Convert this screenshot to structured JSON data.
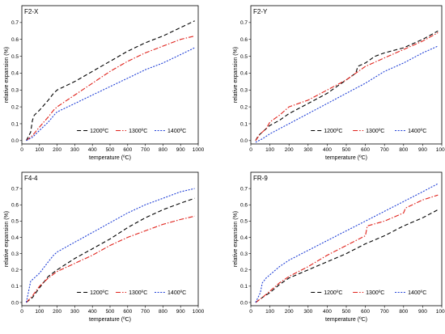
{
  "chart_data": [
    {
      "type": "line",
      "title": "F2-X",
      "xlabel": "temperature (ºC)",
      "ylabel": "relative expansion (%)",
      "xlim": [
        0,
        1000
      ],
      "ylim": [
        -0.02,
        0.8
      ],
      "xticks": [
        "0",
        "100",
        "200",
        "300",
        "400",
        "500",
        "600",
        "700",
        "800",
        "900",
        "1000"
      ],
      "yticks": [
        "0.0",
        "0.1",
        "0.2",
        "0.3",
        "0.4",
        "0.5",
        "0.6",
        "0.7"
      ],
      "legend_position": "bottom-right",
      "series": [
        {
          "name": "1200ºC",
          "color": "#000000",
          "dash": "dash",
          "x": [
            25,
            50,
            60,
            70,
            100,
            150,
            180,
            200,
            300,
            400,
            500,
            600,
            700,
            800,
            900,
            980
          ],
          "y": [
            0.0,
            0.05,
            0.12,
            0.15,
            0.18,
            0.24,
            0.28,
            0.3,
            0.35,
            0.41,
            0.47,
            0.53,
            0.58,
            0.62,
            0.67,
            0.71
          ]
        },
        {
          "name": "1300ºC",
          "color": "#e0221b",
          "dash": "dashdot",
          "x": [
            25,
            60,
            100,
            150,
            180,
            200,
            300,
            400,
            500,
            600,
            700,
            800,
            900,
            980
          ],
          "y": [
            0.0,
            0.03,
            0.08,
            0.14,
            0.18,
            0.2,
            0.27,
            0.34,
            0.41,
            0.47,
            0.52,
            0.56,
            0.6,
            0.62
          ]
        },
        {
          "name": "1400ºC",
          "color": "#1f3fd6",
          "dash": "dot",
          "x": [
            25,
            60,
            100,
            150,
            190,
            200,
            300,
            400,
            500,
            600,
            700,
            800,
            900,
            980
          ],
          "y": [
            0.0,
            0.02,
            0.06,
            0.11,
            0.16,
            0.17,
            0.22,
            0.27,
            0.32,
            0.37,
            0.42,
            0.46,
            0.51,
            0.55
          ]
        }
      ]
    },
    {
      "type": "line",
      "title": "F2-Y",
      "xlabel": "temperature (ºC)",
      "ylabel": "relative expansion (%)",
      "xlim": [
        0,
        1000
      ],
      "ylim": [
        -0.02,
        0.8
      ],
      "xticks": [
        "0",
        "100",
        "200",
        "300",
        "400",
        "500",
        "600",
        "700",
        "800",
        "900",
        "1000"
      ],
      "yticks": [
        "0.0",
        "0.1",
        "0.2",
        "0.3",
        "0.4",
        "0.5",
        "0.6",
        "0.7"
      ],
      "legend_position": "bottom-right",
      "series": [
        {
          "name": "1200ºC",
          "color": "#000000",
          "dash": "dash",
          "x": [
            25,
            40,
            60,
            80,
            100,
            150,
            200,
            300,
            400,
            500,
            550,
            560,
            600,
            650,
            700,
            800,
            900,
            980
          ],
          "y": [
            0.0,
            0.03,
            0.05,
            0.07,
            0.09,
            0.12,
            0.16,
            0.22,
            0.28,
            0.36,
            0.4,
            0.44,
            0.46,
            0.5,
            0.52,
            0.55,
            0.6,
            0.65
          ]
        },
        {
          "name": "1300ºC",
          "color": "#e0221b",
          "dash": "dashdot",
          "x": [
            25,
            50,
            80,
            100,
            150,
            200,
            300,
            400,
            500,
            600,
            700,
            800,
            900,
            980
          ],
          "y": [
            0.0,
            0.04,
            0.07,
            0.11,
            0.15,
            0.2,
            0.24,
            0.3,
            0.36,
            0.44,
            0.49,
            0.54,
            0.59,
            0.64
          ]
        },
        {
          "name": "1400ºC",
          "color": "#1f3fd6",
          "dash": "dot",
          "x": [
            25,
            60,
            100,
            150,
            200,
            300,
            400,
            500,
            600,
            700,
            800,
            900,
            980
          ],
          "y": [
            -0.01,
            0.01,
            0.04,
            0.07,
            0.1,
            0.16,
            0.22,
            0.28,
            0.34,
            0.41,
            0.46,
            0.52,
            0.56
          ]
        }
      ]
    },
    {
      "type": "line",
      "title": "F4-4",
      "xlabel": "temperature (ºC)",
      "ylabel": "relative expansion (%)",
      "xlim": [
        0,
        1000
      ],
      "ylim": [
        -0.02,
        0.8
      ],
      "xticks": [
        "0",
        "100",
        "200",
        "300",
        "400",
        "500",
        "600",
        "700",
        "800",
        "900",
        "1000"
      ],
      "yticks": [
        "0.0",
        "0.1",
        "0.2",
        "0.3",
        "0.4",
        "0.5",
        "0.6",
        "0.7"
      ],
      "legend_position": "bottom-right",
      "series": [
        {
          "name": "1200ºC",
          "color": "#000000",
          "dash": "dash",
          "x": [
            25,
            60,
            100,
            150,
            200,
            300,
            400,
            500,
            600,
            700,
            800,
            900,
            980
          ],
          "y": [
            0.0,
            0.03,
            0.09,
            0.16,
            0.2,
            0.27,
            0.33,
            0.39,
            0.46,
            0.52,
            0.57,
            0.61,
            0.64
          ]
        },
        {
          "name": "1300ºC",
          "color": "#e0221b",
          "dash": "dashdot",
          "x": [
            25,
            60,
            100,
            150,
            200,
            300,
            400,
            500,
            600,
            700,
            800,
            900,
            980
          ],
          "y": [
            0.0,
            0.04,
            0.1,
            0.15,
            0.19,
            0.24,
            0.29,
            0.35,
            0.4,
            0.44,
            0.48,
            0.51,
            0.53
          ]
        },
        {
          "name": "1400ºC",
          "color": "#1f3fd6",
          "dash": "dot",
          "x": [
            25,
            50,
            60,
            100,
            150,
            180,
            200,
            300,
            400,
            500,
            600,
            700,
            800,
            900,
            980
          ],
          "y": [
            0.0,
            0.13,
            0.14,
            0.18,
            0.25,
            0.29,
            0.31,
            0.37,
            0.43,
            0.49,
            0.55,
            0.6,
            0.64,
            0.68,
            0.7
          ]
        }
      ]
    },
    {
      "type": "line",
      "title": "FR-9",
      "xlabel": "temperature (ºC)",
      "ylabel": "relative expansion (%)",
      "xlim": [
        0,
        1000
      ],
      "ylim": [
        -0.02,
        0.8
      ],
      "xticks": [
        "0",
        "100",
        "200",
        "300",
        "400",
        "500",
        "600",
        "700",
        "800",
        "900",
        "1000"
      ],
      "yticks": [
        "0.0",
        "0.1",
        "0.2",
        "0.3",
        "0.4",
        "0.5",
        "0.6",
        "0.7"
      ],
      "legend_position": "bottom-right",
      "series": [
        {
          "name": "1200ºC",
          "color": "#000000",
          "dash": "dash",
          "x": [
            25,
            60,
            100,
            150,
            200,
            300,
            400,
            500,
            600,
            700,
            800,
            900,
            980
          ],
          "y": [
            0.0,
            0.03,
            0.06,
            0.11,
            0.15,
            0.2,
            0.25,
            0.3,
            0.36,
            0.41,
            0.47,
            0.52,
            0.57
          ]
        },
        {
          "name": "1300ºC",
          "color": "#e0221b",
          "dash": "dashdot",
          "x": [
            25,
            60,
            100,
            150,
            200,
            300,
            400,
            500,
            600,
            610,
            700,
            800,
            810,
            900,
            980
          ],
          "y": [
            0.0,
            0.03,
            0.07,
            0.12,
            0.16,
            0.22,
            0.29,
            0.35,
            0.41,
            0.47,
            0.5,
            0.55,
            0.58,
            0.63,
            0.66
          ]
        },
        {
          "name": "1400ºC",
          "color": "#1f3fd6",
          "dash": "dot",
          "x": [
            25,
            50,
            60,
            80,
            100,
            150,
            200,
            300,
            400,
            500,
            600,
            700,
            800,
            900,
            980
          ],
          "y": [
            0.0,
            0.06,
            0.12,
            0.15,
            0.17,
            0.22,
            0.26,
            0.32,
            0.38,
            0.44,
            0.5,
            0.56,
            0.62,
            0.68,
            0.73
          ]
        }
      ]
    }
  ]
}
